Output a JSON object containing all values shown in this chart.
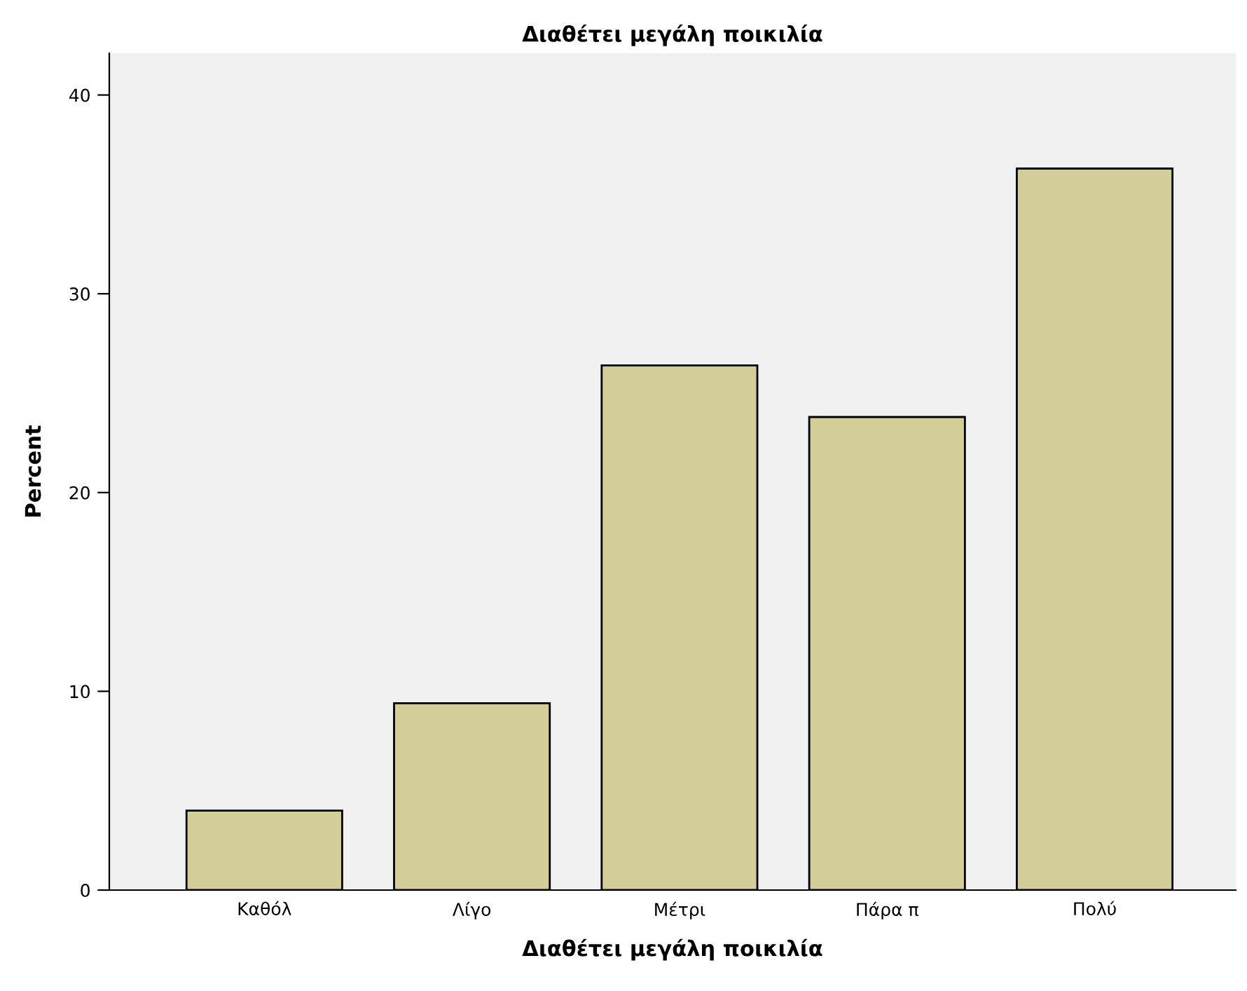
{
  "chart_data": {
    "type": "bar",
    "title": "Διαθέτει μεγάλη ποικιλία",
    "xlabel": "Διαθέτει μεγάλη ποικιλία",
    "ylabel": "Percent",
    "categories": [
      "Καθόλ",
      "Λίγο",
      "Μέτρι",
      "Πάρα π",
      "Πολύ"
    ],
    "values": [
      4.0,
      9.4,
      26.4,
      23.8,
      36.3
    ],
    "color": "#d3ce98",
    "ylim": [
      0,
      42.1
    ],
    "yticks": [
      0,
      10,
      20,
      30,
      40
    ],
    "grid": false,
    "legend": false
  }
}
